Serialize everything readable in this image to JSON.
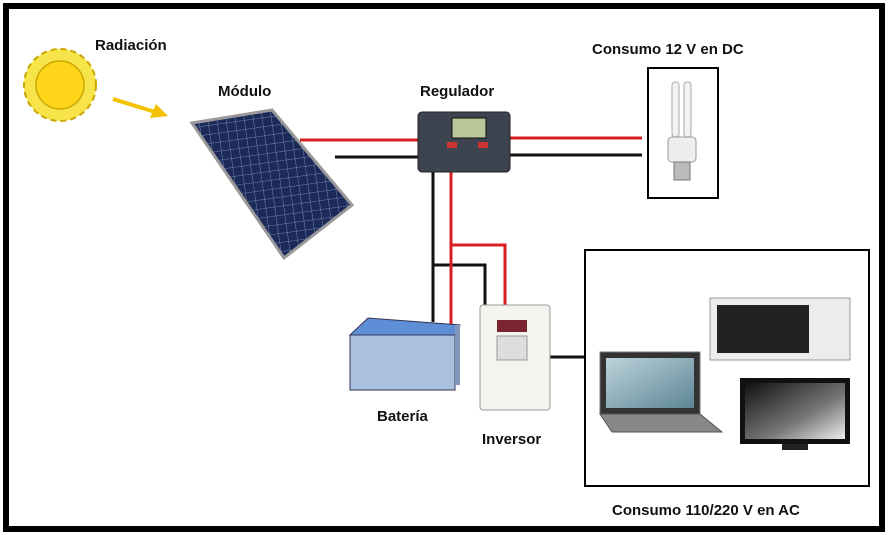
{
  "nodes": [
    {
      "label": "Radiación"
    },
    {
      "label": "Módulo"
    },
    {
      "label": "Regulador"
    },
    {
      "label": "Consumo 12 V en DC"
    },
    {
      "label": "Batería"
    },
    {
      "label": "Inversor"
    },
    {
      "label": "Consumo 110/220 V en AC"
    }
  ]
}
